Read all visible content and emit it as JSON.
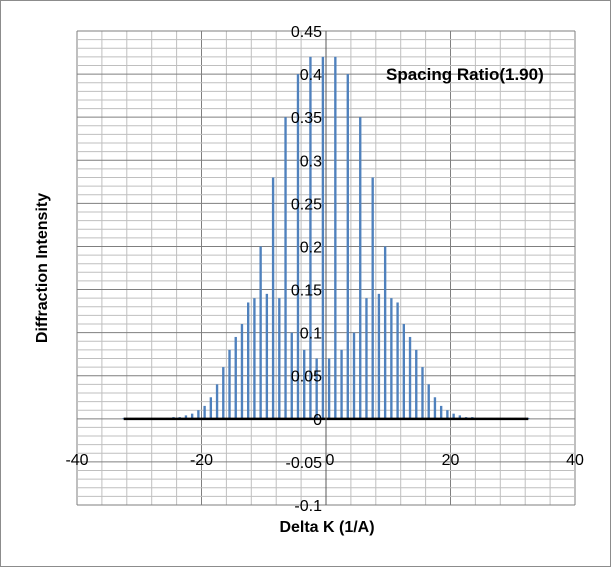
{
  "chart_data": {
    "type": "bar",
    "title": "",
    "xlabel": "Delta K  (1/A)",
    "ylabel": "Diffraction Intensity",
    "annotation": "Spacing Ratio(1.90)",
    "xlim": [
      -40,
      40
    ],
    "ylim": [
      -0.1,
      0.45
    ],
    "x_ticks": [
      "-40",
      "-20",
      "0",
      "20",
      "40"
    ],
    "y_ticks": [
      "-0.1",
      "-0.05",
      "0",
      "0.05",
      "0.1",
      "0.15",
      "0.2",
      "0.25",
      "0.3",
      "0.35",
      "0.4",
      "0.45"
    ],
    "grid": true,
    "bar_color": "#4f81bd",
    "baseline_color": "#000000",
    "series": [
      {
        "x": [
          -32.5,
          -31.5,
          -30.5,
          -29.5,
          -28.5,
          -27.5,
          -26.5,
          -25.5,
          -24.5,
          -23.5,
          -22.5,
          -21.5,
          -20.5,
          -19.5,
          -18.5,
          -17.5,
          -16.5,
          -15.5,
          -14.5,
          -13.5,
          -12.5,
          -11.5,
          -10.5,
          -9.5,
          -8.5,
          -7.5,
          -6.5,
          -5.5,
          -4.5,
          -3.5,
          -2.5,
          -1.5,
          -0.5,
          0.5,
          1.5,
          2.5,
          3.5,
          4.5,
          5.5,
          6.5,
          7.5,
          8.5,
          9.5,
          10.5,
          11.5,
          12.5,
          13.5,
          14.5,
          15.5,
          16.5,
          17.5,
          18.5,
          19.5,
          20.5,
          21.5,
          22.5,
          23.5,
          24.5,
          25.5,
          26.5,
          27.5,
          28.5,
          29.5,
          30.5,
          31.5,
          32.5
        ],
        "values": [
          0.001,
          0.001,
          0.001,
          0.001,
          0.001,
          0.001,
          0.001,
          0.001,
          0.002,
          0.002,
          0.004,
          0.006,
          0.01,
          0.015,
          0.025,
          0.04,
          0.06,
          0.08,
          0.095,
          0.11,
          0.135,
          0.14,
          0.2,
          0.145,
          0.28,
          0.14,
          0.35,
          0.1,
          0.4,
          0.08,
          0.42,
          0.07,
          0.42,
          0.07,
          0.42,
          0.08,
          0.4,
          0.1,
          0.35,
          0.14,
          0.28,
          0.145,
          0.2,
          0.14,
          0.135,
          0.11,
          0.095,
          0.08,
          0.06,
          0.04,
          0.025,
          0.015,
          0.01,
          0.006,
          0.004,
          0.002,
          0.002,
          0.001,
          0.001,
          0.001,
          0.001,
          0.001,
          0.001,
          0.001,
          0.001,
          0.001
        ]
      }
    ]
  }
}
